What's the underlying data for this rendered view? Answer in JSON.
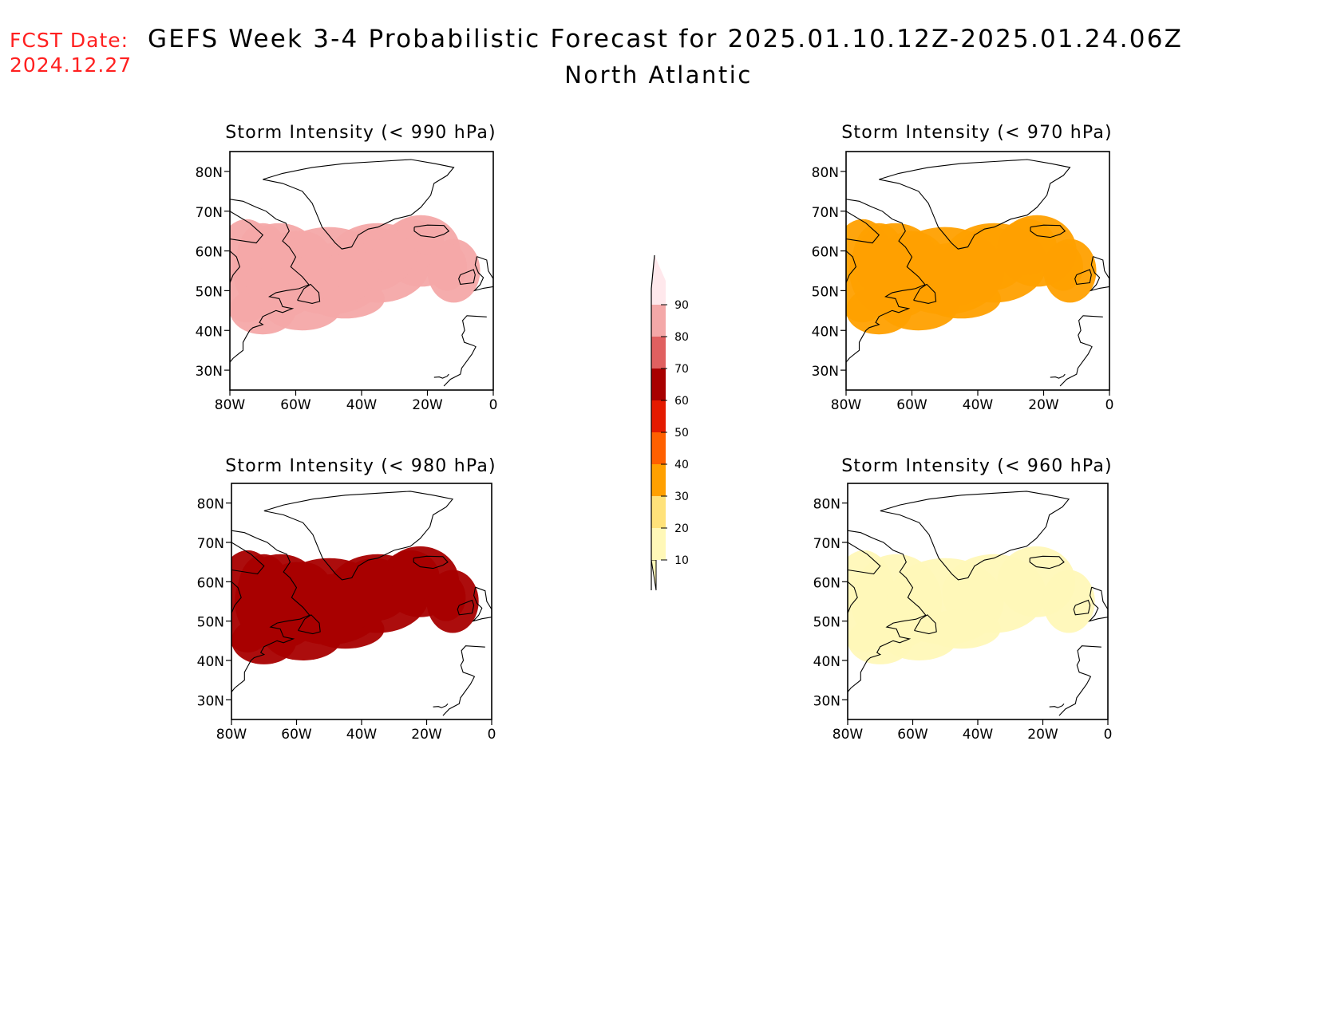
{
  "header": {
    "fcst_label": "FCST Date:",
    "fcst_date": "2024.12.27",
    "title": "GEFS Week 3-4 Probabilistic Forecast for 2025.01.10.12Z-2025.01.24.06Z",
    "region": "North Atlantic"
  },
  "panels": [
    {
      "id": "p990",
      "title": "Storm Intensity (< 990 hPa)",
      "level": 4
    },
    {
      "id": "p970",
      "title": "Storm Intensity (< 970 hPa)",
      "level": 2
    },
    {
      "id": "p980",
      "title": "Storm Intensity (< 980 hPa)",
      "level": 3
    },
    {
      "id": "p960",
      "title": "Storm Intensity (< 960 hPa)",
      "level": 1
    }
  ],
  "axes": {
    "lat_labels": [
      "80N",
      "70N",
      "60N",
      "50N",
      "40N",
      "30N"
    ],
    "lat_values": [
      80,
      70,
      60,
      50,
      40,
      30
    ],
    "lon_labels": [
      "80W",
      "60W",
      "40W",
      "20W",
      "0"
    ],
    "lon_values": [
      -80,
      -60,
      -40,
      -20,
      0
    ],
    "lat_range": [
      25,
      85
    ],
    "lon_range": [
      -80,
      0
    ]
  },
  "colorbar": {
    "labels": [
      "10",
      "20",
      "30",
      "40",
      "50",
      "60",
      "70",
      "80",
      "90"
    ],
    "colors": [
      "#fff8b8",
      "#ffe27a",
      "#ffa000",
      "#ff6000",
      "#e41a00",
      "#a80000",
      "#e06060",
      "#f4a8a8",
      "#ffe8ec"
    ]
  }
}
